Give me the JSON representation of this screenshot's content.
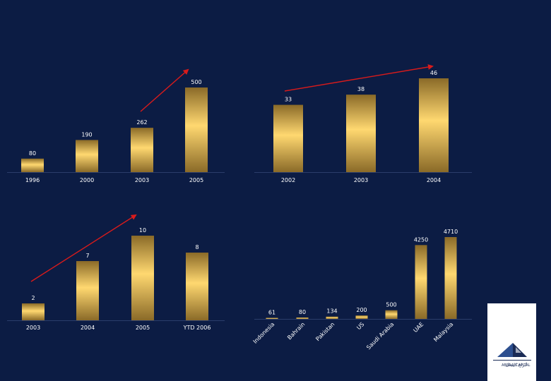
{
  "chart_data": [
    {
      "type": "bar",
      "categories": [
        "1996",
        "2000",
        "2003",
        "2005"
      ],
      "values": [
        80,
        190,
        262,
        500
      ],
      "value_labels": [
        "80",
        "190",
        "262",
        "500"
      ],
      "title": "",
      "xlabel": "",
      "ylabel": "",
      "grid": false,
      "trend_arrow": true
    },
    {
      "type": "bar",
      "categories": [
        "2002",
        "2003",
        "2004"
      ],
      "values": [
        33,
        38,
        46
      ],
      "value_labels": [
        "33",
        "38",
        "46"
      ],
      "title": "",
      "xlabel": "",
      "ylabel": "",
      "grid": false,
      "trend_arrow": true
    },
    {
      "type": "bar",
      "categories": [
        "2003",
        "2004",
        "2005",
        "YTD 2006"
      ],
      "values": [
        2,
        7,
        10,
        8
      ],
      "value_labels": [
        "2",
        "7",
        "10",
        "8"
      ],
      "title": "",
      "xlabel": "",
      "ylabel": "",
      "grid": false,
      "trend_arrow": true
    },
    {
      "type": "bar",
      "categories": [
        "Indonesia",
        "Bahrain",
        "Pakistan",
        "US",
        "Saudi Arabia",
        "UAE",
        "Malaysia"
      ],
      "values": [
        61,
        80,
        134,
        200,
        500,
        4250,
        4710
      ],
      "value_labels": [
        "61",
        "80",
        "134",
        "200",
        "500",
        "4250",
        "4710"
      ],
      "title": "",
      "xlabel": "",
      "ylabel": "",
      "grid": false,
      "trend_arrow": false
    }
  ],
  "logo": {
    "text": "ABRAAJ CAPITAL",
    "arabic_text": "أبراج كابيتال"
  },
  "colors": {
    "background": "#0c1c44",
    "bar_light": "#ffd870",
    "bar_dark": "#8a6a28",
    "arrow": "#d91b1b",
    "text": "#ffffff"
  }
}
